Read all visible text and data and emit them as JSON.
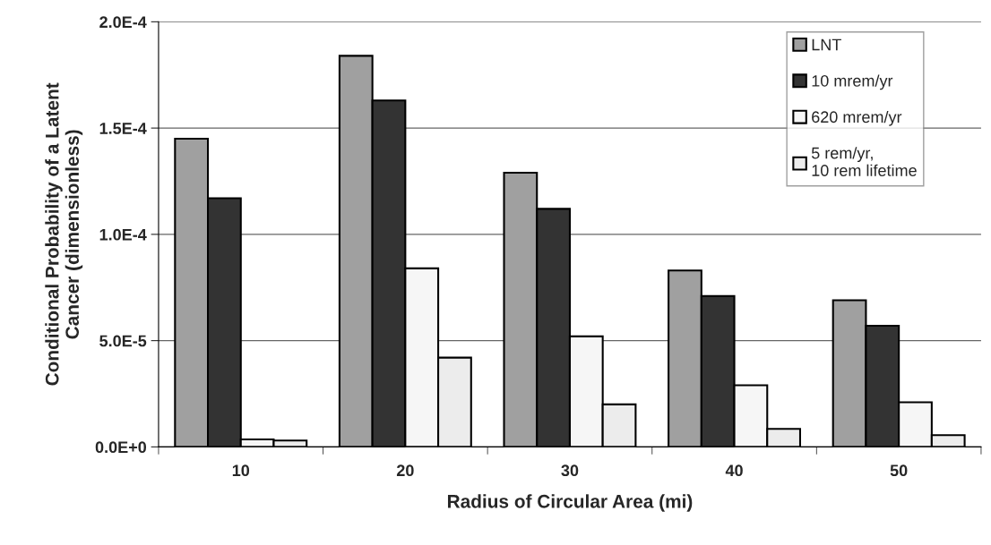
{
  "chart_data": {
    "type": "bar",
    "xlabel": "Radius of Circular Area (mi)",
    "ylabel": "Conditional Probability of a Latent\nCancer (dimensionless)",
    "categories": [
      "10",
      "20",
      "30",
      "40",
      "50"
    ],
    "series": [
      {
        "name": "LNT",
        "color": "#a0a0a0",
        "values": [
          0.000145,
          0.000184,
          0.000129,
          8.3e-05,
          6.9e-05
        ]
      },
      {
        "name": "10 mrem/yr",
        "color": "#333333",
        "values": [
          0.000117,
          0.000163,
          0.000112,
          7.1e-05,
          5.7e-05
        ]
      },
      {
        "name": "620 mrem/yr",
        "color": "#f6f6f6",
        "values": [
          3.5e-06,
          8.4e-05,
          5.2e-05,
          2.9e-05,
          2.1e-05
        ]
      },
      {
        "name": "5 rem/yr,\n10 rem lifetime",
        "color": "#ececec",
        "values": [
          3e-06,
          4.2e-05,
          2e-05,
          8.5e-06,
          5.5e-06
        ]
      }
    ],
    "ylim": [
      0,
      0.0002
    ],
    "yticks": [
      {
        "value": 0,
        "label": "0.0E+0"
      },
      {
        "value": 5e-05,
        "label": "5.0E-5"
      },
      {
        "value": 0.0001,
        "label": "1.0E-4"
      },
      {
        "value": 0.00015,
        "label": "1.5E-4"
      },
      {
        "value": 0.0002,
        "label": "2.0E-4"
      }
    ],
    "grid": "y",
    "legend": "top right"
  }
}
